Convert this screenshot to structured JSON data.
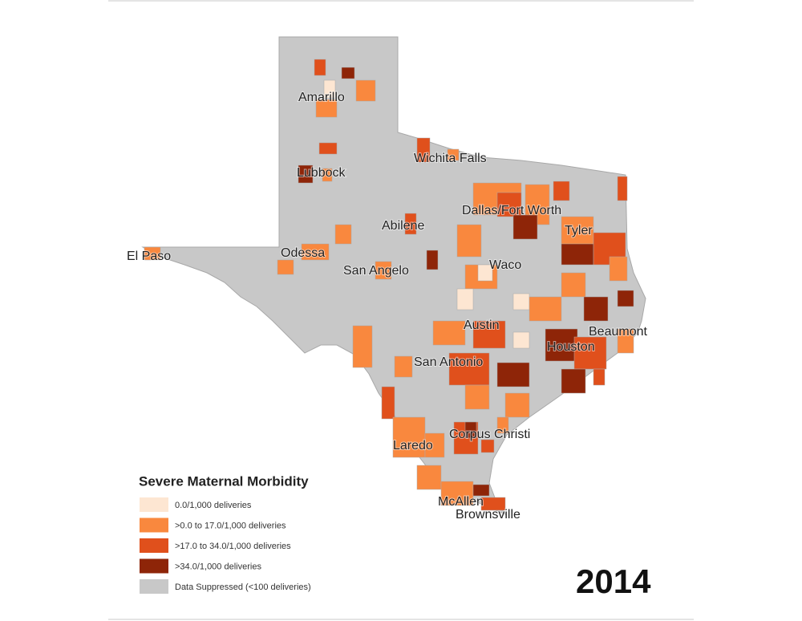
{
  "map": {
    "year": "2014",
    "cities": [
      "Amarillo",
      "Lubbock",
      "Wichita Falls",
      "Dallas/Fort Worth",
      "Tyler",
      "Abilene",
      "El Paso",
      "Odessa",
      "San Angelo",
      "Waco",
      "Austin",
      "Beaumont",
      "Houston",
      "San Antonio",
      "Corpus Christi",
      "Laredo",
      "McAllen",
      "Brownsville"
    ],
    "legend": {
      "title": "Severe Maternal Morbidity",
      "items": [
        {
          "label": "0.0/1,000 deliveries",
          "color": "#fde6d2"
        },
        {
          "label": ">0.0 to 17.0/1,000 deliveries",
          "color": "#f9883e"
        },
        {
          "label": ">17.0 to 34.0/1,000 deliveries",
          "color": "#e0501c"
        },
        {
          "label": ">34.0/1,000 deliveries",
          "color": "#8e2508"
        },
        {
          "label": "Data Suppressed (<100 deliveries)",
          "color": "#c8c8c8"
        }
      ]
    }
  }
}
